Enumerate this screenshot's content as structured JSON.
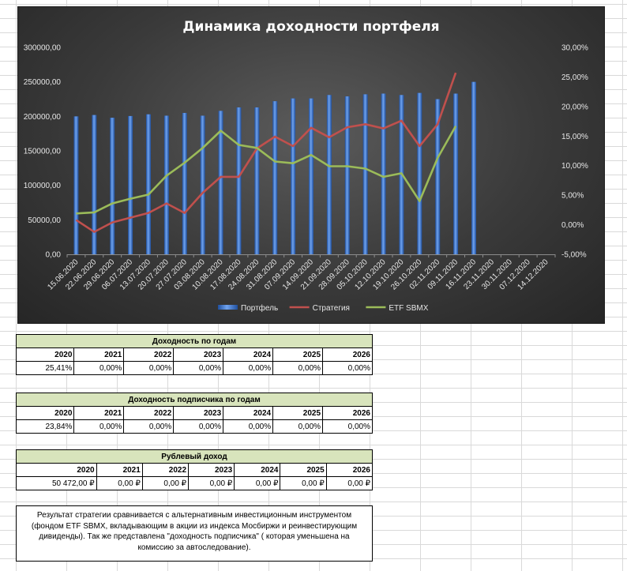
{
  "chart_data": {
    "type": "bar+line",
    "title": "Динамика доходности портфеля",
    "categories": [
      "15.06.2020",
      "22.06.2020",
      "29.06.2020",
      "06.07.2020",
      "13.07.2020",
      "20.07.2020",
      "27.07.2020",
      "03.08.2020",
      "10.08.2020",
      "17.08.2020",
      "24.08.2020",
      "31.08.2020",
      "07.09.2020",
      "14.09.2020",
      "21.09.2020",
      "28.09.2020",
      "05.10.2020",
      "12.10.2020",
      "19.10.2020",
      "26.10.2020",
      "02.11.2020",
      "09.11.2020",
      "16.11.2020",
      "23.11.2020",
      "30.11.2020",
      "07.12.2020",
      "14.12.2020"
    ],
    "y_left": {
      "ticks": [
        "0,00",
        "50000,00",
        "100000,00",
        "150000,00",
        "200000,00",
        "250000,00",
        "300000,00"
      ],
      "min": 0,
      "max": 300000
    },
    "y_right": {
      "ticks": [
        "-5,00%",
        "0,00%",
        "5,00%",
        "10,00%",
        "15,00%",
        "20,00%",
        "25,00%",
        "30,00%"
      ],
      "min": -5,
      "max": 30
    },
    "series": [
      {
        "name": "Портфель",
        "kind": "bar",
        "axis": "left",
        "color": "#3c78d8",
        "values": [
          200000,
          202000,
          198000,
          200500,
          203000,
          201000,
          205000,
          201000,
          208000,
          213000,
          213000,
          222000,
          226000,
          226000,
          231000,
          229000,
          232000,
          233000,
          231000,
          234000,
          225000,
          233000,
          250000,
          null,
          null,
          null,
          null
        ]
      },
      {
        "name": "Стратегия",
        "kind": "line",
        "axis": "right",
        "color": "#c0504d",
        "values": [
          0.8,
          -1.2,
          0.4,
          1.2,
          2.0,
          3.6,
          2.0,
          5.4,
          8.1,
          8.1,
          12.9,
          14.9,
          13.3,
          16.4,
          14.8,
          16.5,
          17.0,
          16.3,
          17.6,
          13.3,
          17.0,
          25.7,
          null,
          null,
          null,
          null,
          null
        ]
      },
      {
        "name": "ETF SBMX",
        "kind": "line",
        "axis": "right",
        "color": "#9bbb59",
        "values": [
          1.9,
          2.1,
          3.6,
          4.4,
          5.1,
          8.3,
          10.5,
          13.0,
          15.9,
          13.5,
          13.0,
          10.7,
          10.4,
          11.8,
          9.9,
          9.9,
          9.5,
          8.1,
          8.7,
          4.0,
          11.3,
          16.7,
          null,
          null,
          null,
          null,
          null
        ]
      }
    ],
    "legend_position": "bottom",
    "grid": false
  },
  "tables": [
    {
      "title": "Доходность по годам",
      "years": [
        "2020",
        "2021",
        "2022",
        "2023",
        "2024",
        "2025",
        "2026"
      ],
      "values": [
        "25,41%",
        "0,00%",
        "0,00%",
        "0,00%",
        "0,00%",
        "0,00%",
        "0,00%"
      ]
    },
    {
      "title": "Доходность подписчика по годам",
      "years": [
        "2020",
        "2021",
        "2022",
        "2023",
        "2024",
        "2025",
        "2026"
      ],
      "values": [
        "23,84%",
        "0,00%",
        "0,00%",
        "0,00%",
        "0,00%",
        "0,00%",
        "0,00%"
      ]
    },
    {
      "title": "Рублевый доход",
      "years": [
        "2020",
        "2021",
        "2022",
        "2023",
        "2024",
        "2025",
        "2026"
      ],
      "values": [
        "50 472,00 ₽",
        "0,00 ₽",
        "0,00 ₽",
        "0,00 ₽",
        "0,00 ₽",
        "0,00 ₽",
        "0,00 ₽"
      ]
    }
  ],
  "note": "Результат стратегии сравнивается с альтернативным инвестиционным инструментом (фондом ETF SBMX, вкладывающим в акции из индекса Мосбиржи и реинвестирующим дивиденды). Так же представлена \"доходность подписчика\" ( которая уменьшена на комиссию за автоследование)."
}
